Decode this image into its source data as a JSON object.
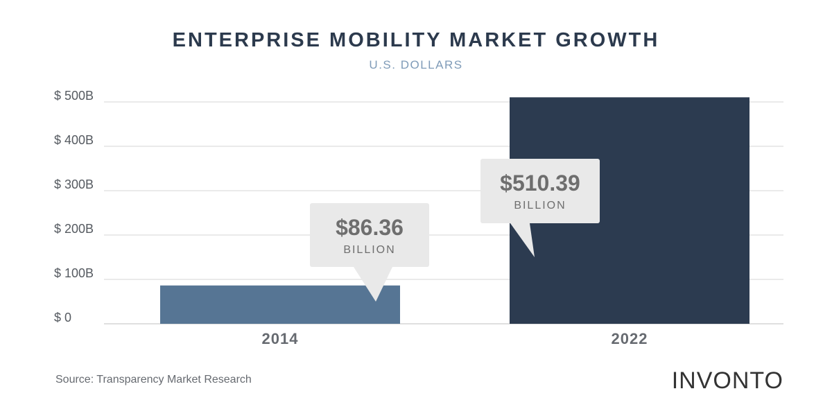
{
  "chart_data": {
    "type": "bar",
    "title": "ENTERPRISE MOBILITY MARKET GROWTH",
    "subtitle": "U.S. DOLLARS",
    "categories": [
      "2014",
      "2022"
    ],
    "values": [
      86.36,
      510.39
    ],
    "unit": "billion USD",
    "ylim": [
      0,
      500
    ],
    "yticks": [
      0,
      100,
      200,
      300,
      400,
      500
    ],
    "ytick_labels": [
      "$ 0",
      "$ 100B",
      "$ 200B",
      "$ 300B",
      "$ 400B",
      "$ 500B"
    ],
    "grid": true,
    "bar_colors": [
      "#567594",
      "#2c3b50"
    ],
    "callouts": [
      {
        "amount": "$86.36",
        "unit": "BILLION"
      },
      {
        "amount": "$510.39",
        "unit": "BILLION"
      }
    ],
    "source": "Source: Transparency Market Research"
  },
  "branding": {
    "logo_text": "INVONTO"
  }
}
